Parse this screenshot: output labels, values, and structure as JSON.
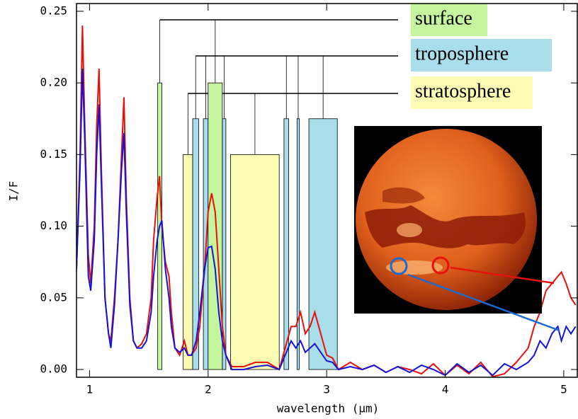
{
  "chart_data": {
    "type": "line",
    "xlabel": "wavelength (μm)",
    "ylabel": "I/F",
    "xlim": [
      0.89,
      5.12
    ],
    "ylim": [
      -0.0054,
      0.2554
    ],
    "xticks": [
      1,
      2,
      3,
      4,
      5
    ],
    "yticks": [
      {
        "value": 0,
        "label": "0.00"
      },
      {
        "value": 0.05,
        "label": "0.05"
      },
      {
        "value": 0.1,
        "label": "0.10"
      },
      {
        "value": 0.15,
        "label": "0.15"
      },
      {
        "value": 0.2,
        "label": "0.20"
      },
      {
        "value": 0.25,
        "label": "0.25"
      }
    ],
    "x": [
      0.89,
      0.92,
      0.94,
      0.96,
      0.99,
      1.01,
      1.04,
      1.06,
      1.08,
      1.1,
      1.13,
      1.16,
      1.18,
      1.21,
      1.24,
      1.27,
      1.29,
      1.31,
      1.34,
      1.37,
      1.4,
      1.44,
      1.48,
      1.52,
      1.54,
      1.57,
      1.59,
      1.61,
      1.64,
      1.67,
      1.69,
      1.72,
      1.76,
      1.8,
      1.83,
      1.86,
      1.9,
      1.93,
      1.97,
      2.0,
      2.03,
      2.06,
      2.09,
      2.12,
      2.15,
      2.2,
      2.3,
      2.4,
      2.5,
      2.6,
      2.65,
      2.7,
      2.74,
      2.78,
      2.82,
      2.86,
      2.9,
      2.95,
      3.0,
      3.05,
      3.1,
      3.2,
      3.3,
      3.4,
      3.5,
      3.6,
      3.7,
      3.8,
      3.9,
      4.0,
      4.1,
      4.2,
      4.3,
      4.4,
      4.5,
      4.6,
      4.7,
      4.75,
      4.8,
      4.85,
      4.9,
      4.95,
      4.98,
      5.02,
      5.06,
      5.1
    ],
    "series": [
      {
        "color": "#e8100c",
        "values": [
          0.07,
          0.15,
          0.24,
          0.17,
          0.08,
          0.06,
          0.1,
          0.17,
          0.21,
          0.14,
          0.05,
          0.025,
          0.02,
          0.05,
          0.09,
          0.15,
          0.19,
          0.12,
          0.05,
          0.02,
          0.015,
          0.018,
          0.025,
          0.05,
          0.09,
          0.12,
          0.135,
          0.1,
          0.075,
          0.065,
          0.04,
          0.015,
          0.01,
          0.02,
          0.01,
          0.01,
          0.015,
          0.03,
          0.07,
          0.11,
          0.123,
          0.11,
          0.07,
          0.03,
          0.01,
          0.002,
          0.002,
          0.005,
          0.005,
          0.0,
          0.015,
          0.03,
          0.03,
          0.04,
          0.025,
          0.03,
          0.04,
          0.025,
          0.01,
          0.008,
          0.0,
          0.005,
          0.0,
          0.003,
          -0.002,
          0.002,
          0.0,
          -0.003,
          0.004,
          -0.004,
          0.003,
          -0.003,
          0.005,
          -0.005,
          -0.003,
          0.005,
          0.015,
          0.03,
          0.04,
          0.055,
          0.06,
          0.065,
          0.068,
          0.06,
          0.05,
          0.045
        ]
      },
      {
        "color": "#1414d8",
        "values": [
          0.07,
          0.14,
          0.21,
          0.16,
          0.065,
          0.055,
          0.09,
          0.15,
          0.185,
          0.13,
          0.05,
          0.025,
          0.015,
          0.045,
          0.09,
          0.14,
          0.165,
          0.11,
          0.045,
          0.02,
          0.015,
          0.015,
          0.02,
          0.04,
          0.065,
          0.09,
          0.1,
          0.104,
          0.07,
          0.05,
          0.03,
          0.015,
          0.012,
          0.015,
          0.01,
          0.01,
          0.02,
          0.04,
          0.07,
          0.085,
          0.086,
          0.07,
          0.04,
          0.02,
          0.01,
          0.0,
          0.0,
          0.002,
          0.003,
          0.0,
          0.01,
          0.02,
          0.015,
          0.02,
          0.012,
          0.015,
          0.018,
          0.012,
          0.006,
          0.005,
          0.0,
          0.002,
          0.0,
          0.003,
          -0.002,
          0.002,
          -0.002,
          0.003,
          0.0,
          -0.004,
          0.004,
          -0.002,
          0.003,
          -0.004,
          0.004,
          0.0,
          0.005,
          0.01,
          0.02,
          0.015,
          0.025,
          0.03,
          0.02,
          0.03,
          0.025,
          0.03
        ]
      }
    ],
    "layers": [
      {
        "name": "stratosphere",
        "color": "#fbfbb4",
        "windows": [
          {
            "x0": 1.79,
            "x1": 1.87,
            "top": 0.15
          },
          {
            "x0": 2.19,
            "x1": 2.6,
            "top": 0.15
          }
        ]
      },
      {
        "name": "troposphere",
        "color": "#a9dde9",
        "windows": [
          {
            "x0": 1.87,
            "x1": 1.92,
            "top": 0.175
          },
          {
            "x0": 1.96,
            "x1": 2.0,
            "top": 0.175
          },
          {
            "x0": 2.12,
            "x1": 2.15,
            "top": 0.175
          },
          {
            "x0": 2.64,
            "x1": 2.68,
            "top": 0.175
          },
          {
            "x0": 2.75,
            "x1": 2.77,
            "top": 0.175
          },
          {
            "x0": 2.85,
            "x1": 3.09,
            "top": 0.175
          }
        ]
      },
      {
        "name": "surface",
        "color": "#c6f5a0",
        "windows": [
          {
            "x0": 1.575,
            "x1": 1.61,
            "top": 0.2
          },
          {
            "x0": 2.0,
            "x1": 2.12,
            "top": 0.2
          }
        ]
      }
    ]
  }
}
